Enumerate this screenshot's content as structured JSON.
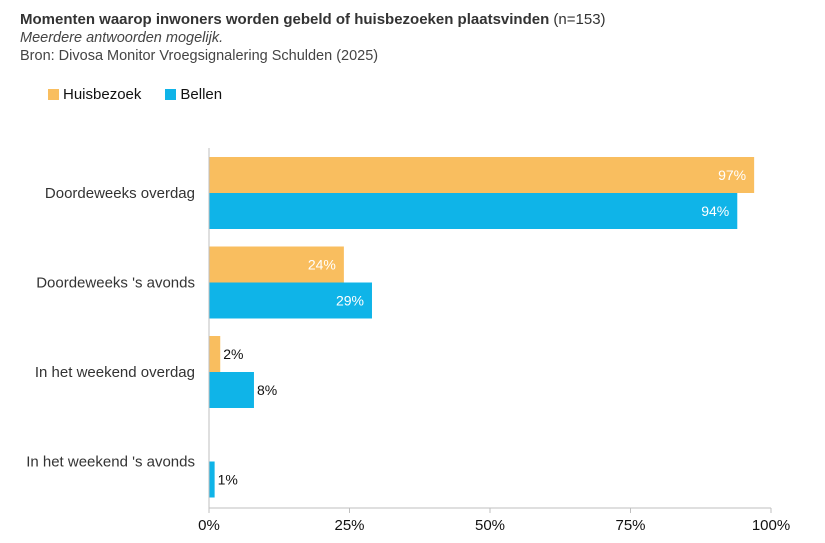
{
  "header": {
    "title": "Momenten waarop inwoners worden gebeld of huisbezoeken plaatsvinden",
    "n_label": "(n=153)",
    "subtitle": "Meerdere antwoorden  mogelijk.",
    "source": "Bron: Divosa Monitor Vroegsignalering Schulden (2025)"
  },
  "colors": {
    "huisbezoek": "#F9BE5F",
    "bellen": "#0FB4E8"
  },
  "chart_data": {
    "type": "bar",
    "orientation": "horizontal",
    "categories": [
      "Doordeweeks overdag",
      "Doordeweeks 's avonds",
      "In het weekend overdag",
      "In het weekend 's avonds"
    ],
    "series": [
      {
        "name": "Huisbezoek",
        "values": [
          97,
          24,
          2,
          0
        ],
        "labels": [
          "97%",
          "24%",
          "2%",
          ""
        ]
      },
      {
        "name": "Bellen",
        "values": [
          94,
          29,
          8,
          1
        ],
        "labels": [
          "94%",
          "29%",
          "8%",
          "1%"
        ]
      }
    ],
    "xlim": [
      0,
      100
    ],
    "xticks": [
      0,
      25,
      50,
      75,
      100
    ],
    "xtick_labels": [
      "0%",
      "25%",
      "50%",
      "75%",
      "100%"
    ],
    "legend_position": "top-left",
    "grid": false
  }
}
